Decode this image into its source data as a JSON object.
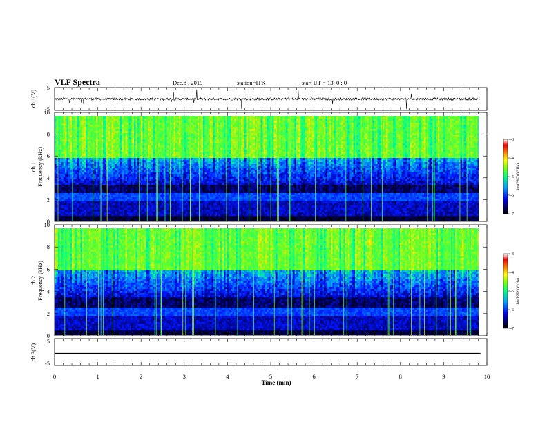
{
  "header": {
    "title": "VLF Spectra",
    "date": "Dec.8 , 2019",
    "station": "station=ITK",
    "start": "start  UT =   13: 0  : 0"
  },
  "chart_data": [
    {
      "type": "line",
      "panel": "ch1-waveform",
      "ylabel": "ch.1(V)",
      "ylim": [
        -5,
        5
      ],
      "yticks": [
        "5",
        "-5"
      ],
      "xlim": [
        0,
        10
      ],
      "baseline": 0,
      "description_values": "noisy waveform near 0 V with sparse spikes reaching about ±5 V"
    },
    {
      "type": "heatmap",
      "panel": "ch1-spectrogram",
      "ylabel_top": "ch.1",
      "ylabel": "Frequency (kHz)",
      "ylim": [
        0,
        10
      ],
      "yticks": [
        "0",
        "2",
        "4",
        "6",
        "8",
        "10"
      ],
      "xlim": [
        0,
        9.85
      ],
      "colorbar": {
        "label": "log(PSD)(V²/Hz)",
        "range": [
          -7,
          -3
        ],
        "ticks": [
          "-3",
          "-4",
          "-5",
          "-6",
          "-7"
        ]
      }
    },
    {
      "type": "heatmap",
      "panel": "ch2-spectrogram",
      "ylabel_top": "ch.2",
      "ylabel": "Frequency (kHz)",
      "ylim": [
        0,
        10
      ],
      "yticks": [
        "0",
        "2",
        "4",
        "6",
        "8",
        "10"
      ],
      "xlim": [
        0,
        9.85
      ],
      "colorbar": {
        "label": "log(PSD)(V²/Hz)",
        "range": [
          -7,
          -3
        ],
        "ticks": [
          "-3",
          "-4",
          "-5",
          "-6",
          "-7"
        ]
      }
    },
    {
      "type": "line",
      "panel": "ch3-waveform",
      "ylabel": "ch.3(V)",
      "ylim": [
        -5,
        5
      ],
      "yticks": [
        "5",
        "-5"
      ],
      "xlim": [
        0,
        10
      ],
      "baseline": -0.5
    }
  ],
  "xaxis": {
    "label": "Time  (min)",
    "ticks": [
      "0",
      "1",
      "2",
      "3",
      "4",
      "5",
      "6",
      "7",
      "8",
      "9",
      "10"
    ],
    "range": [
      0,
      10
    ]
  },
  "colors": {
    "spectro_low": "#000000",
    "spectro_mid": "#1f3cff",
    "spectro_high": "#33ff66"
  }
}
